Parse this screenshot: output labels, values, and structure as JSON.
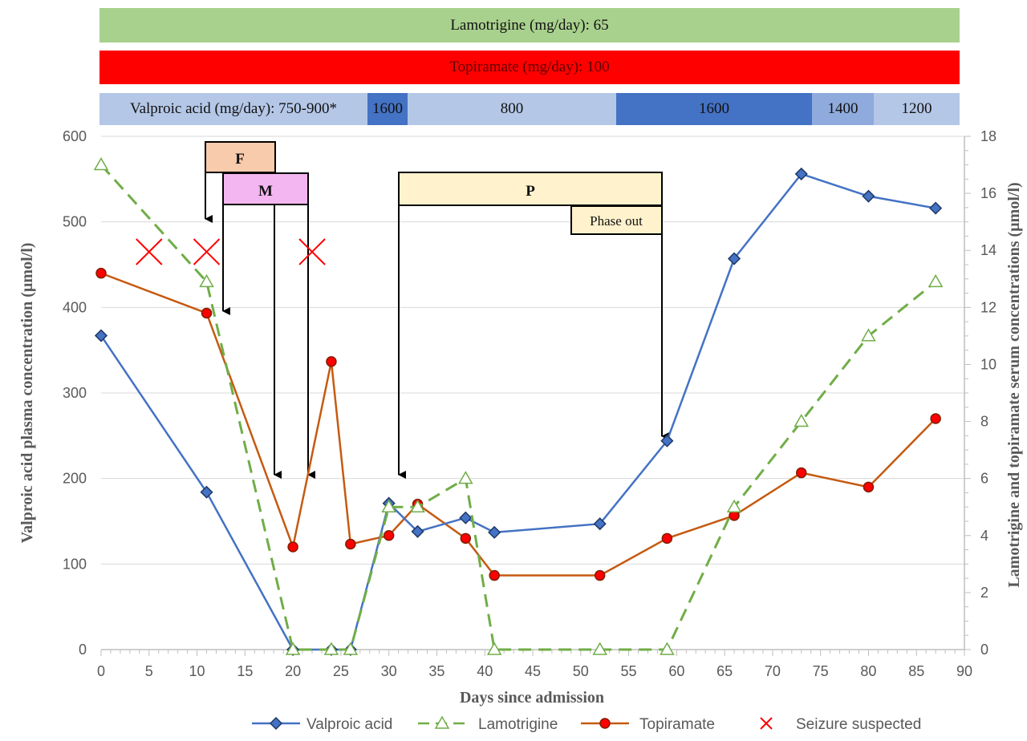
{
  "dose_bars": {
    "lamotrigine": {
      "label": "Lamotrigine (mg/day):  65",
      "color": "#a9d18e"
    },
    "topiramate": {
      "label": "Topiramate (mg/day): 100",
      "color": "#ff0000"
    },
    "valproic_segments": [
      {
        "label": "Valproic acid (mg/day): 750-900*",
        "color": "#b4c7e7"
      },
      {
        "label": "1600",
        "color": "#4472c4"
      },
      {
        "label": "800",
        "color": "#b4c7e7"
      },
      {
        "label": "1600",
        "color": "#4472c4"
      },
      {
        "label": "1400",
        "color": "#8faadc"
      },
      {
        "label": "1200",
        "color": "#b4c7e7"
      }
    ]
  },
  "annotations": {
    "F": {
      "label": "F",
      "color": "#f8cbad"
    },
    "M": {
      "label": "M",
      "color": "#f4b6f0"
    },
    "P": {
      "label": "P",
      "color": "#fff2cc"
    },
    "phase_out": {
      "label": "Phase out",
      "color": "#fff2cc"
    }
  },
  "chart_data": {
    "type": "line",
    "xlabel": "Days since admission",
    "ylabel": "Valproic acid plasma concentration (µmol/l)",
    "y2label": "Lamotrigine and topiramate serum concentrations (µmol/l)",
    "xlim": [
      0,
      90
    ],
    "ylim": [
      0,
      600
    ],
    "y2lim": [
      0,
      18
    ],
    "xticks": [
      0,
      5,
      10,
      15,
      20,
      25,
      30,
      35,
      40,
      45,
      50,
      55,
      60,
      65,
      70,
      75,
      80,
      85,
      90
    ],
    "yticks": [
      0,
      100,
      200,
      300,
      400,
      500,
      600
    ],
    "y2ticks": [
      0,
      2,
      4,
      6,
      8,
      10,
      12,
      14,
      16,
      18
    ],
    "grid": true,
    "legend_position": "bottom",
    "series": [
      {
        "name": "Valproic acid",
        "axis": "left",
        "color": "#4472c4",
        "marker": "diamond",
        "dash": false,
        "x": [
          0,
          11,
          20,
          24,
          26,
          30,
          33,
          38,
          41,
          52,
          59,
          66,
          73,
          80,
          87
        ],
        "y": [
          367,
          184,
          0,
          0,
          0,
          171,
          138,
          154,
          137,
          147,
          244,
          457,
          556,
          530,
          516
        ]
      },
      {
        "name": "Lamotrigine",
        "axis": "right",
        "color": "#70ad47",
        "marker": "triangle",
        "dash": true,
        "x": [
          0,
          11,
          20,
          24,
          26,
          30,
          33,
          38,
          41,
          52,
          59,
          66,
          73,
          80,
          87
        ],
        "y": [
          17.0,
          12.9,
          0,
          0,
          0,
          5.0,
          5.0,
          6.0,
          0,
          0,
          0,
          5.0,
          8.0,
          11.0,
          12.9
        ]
      },
      {
        "name": "Topiramate",
        "axis": "right",
        "color": "#c55a11",
        "marker": "circle",
        "dash": false,
        "x": [
          0,
          11,
          20,
          24,
          26,
          30,
          33,
          38,
          41,
          52,
          59,
          66,
          73,
          80,
          87
        ],
        "y": [
          13.2,
          11.8,
          3.6,
          10.1,
          3.7,
          4.0,
          5.1,
          3.9,
          2.6,
          2.6,
          3.9,
          4.7,
          6.2,
          5.7,
          8.1
        ]
      },
      {
        "name": "Seizure suspected",
        "axis": "left",
        "color": "#ff0000",
        "marker": "x",
        "x": [
          5,
          11,
          22
        ],
        "y": [
          465,
          465,
          465
        ]
      }
    ]
  }
}
